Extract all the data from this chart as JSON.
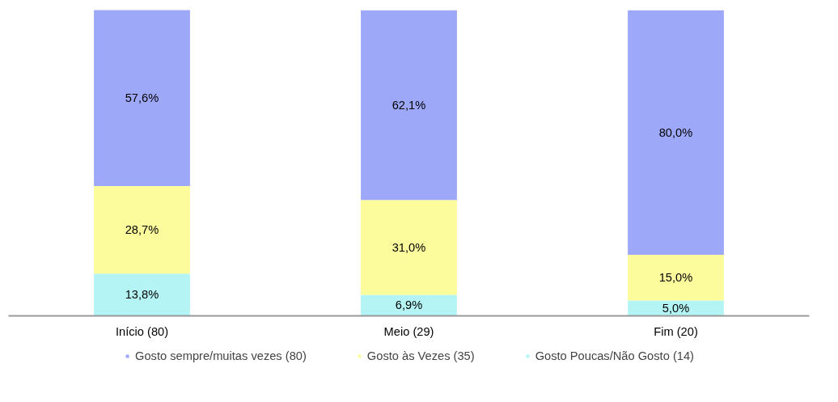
{
  "chart_data": {
    "type": "bar",
    "stacked": true,
    "categories": [
      "Início (80)",
      "Meio (29)",
      "Fim (20)"
    ],
    "series": [
      {
        "name": "Gosto Poucas/Não Gosto (14)",
        "color": "#b4f4f4",
        "values": [
          13.8,
          6.9,
          5.0
        ],
        "value_labels": [
          "13,8%",
          "6,9%",
          "5,0%"
        ]
      },
      {
        "name": "Gosto às Vezes (35)",
        "color": "#fcfc9c",
        "values": [
          28.7,
          31.0,
          15.0
        ],
        "value_labels": [
          "28,7%",
          "31,0%",
          "15,0%"
        ]
      },
      {
        "name": "Gosto sempre/muitas vezes (80)",
        "color": "#9ea8f8",
        "values": [
          57.6,
          62.1,
          80.0
        ],
        "value_labels": [
          "57,6%",
          "62,1%",
          "80,0%"
        ]
      }
    ],
    "legend": "bottom",
    "tick_labels": "x"
  }
}
